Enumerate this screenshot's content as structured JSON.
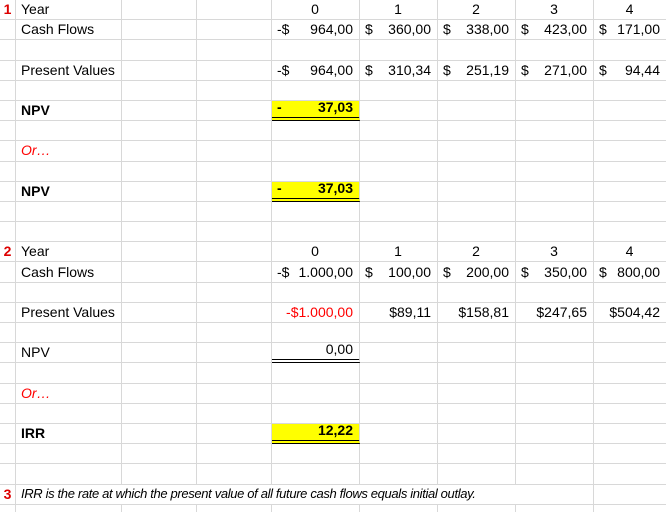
{
  "colors": {
    "highlight": "#ffff00",
    "red": "#ff0000",
    "index_red": "#dd0000",
    "grid": "#d8d8d8"
  },
  "sheet": {
    "cells": [
      {
        "r": 0,
        "c": 0,
        "t": "1",
        "cls": "idx"
      },
      {
        "r": 0,
        "c": 1,
        "t": "Year",
        "cls": "label"
      },
      {
        "r": 0,
        "c": 4,
        "t": "0",
        "cls": "num-c"
      },
      {
        "r": 0,
        "c": 5,
        "t": "1",
        "cls": "num-c"
      },
      {
        "r": 0,
        "c": 6,
        "t": "2",
        "cls": "num-c"
      },
      {
        "r": 0,
        "c": 7,
        "t": "3",
        "cls": "num-c"
      },
      {
        "r": 0,
        "c": 8,
        "t": "4",
        "cls": "num-c"
      },
      {
        "r": 1,
        "c": 1,
        "t": "Cash Flows",
        "cls": "label"
      },
      {
        "r": 1,
        "c": 4,
        "sym": "-$",
        "val": "964,00",
        "cls": "acc"
      },
      {
        "r": 1,
        "c": 5,
        "sym": "$",
        "val": "360,00",
        "cls": "acc"
      },
      {
        "r": 1,
        "c": 6,
        "sym": "$",
        "val": "338,00",
        "cls": "acc"
      },
      {
        "r": 1,
        "c": 7,
        "sym": "$",
        "val": "423,00",
        "cls": "acc"
      },
      {
        "r": 1,
        "c": 8,
        "sym": "$",
        "val": "171,00",
        "cls": "acc"
      },
      {
        "r": 3,
        "c": 1,
        "t": "Present Values",
        "cls": "label"
      },
      {
        "r": 3,
        "c": 4,
        "sym": "-$",
        "val": "964,00",
        "cls": "acc"
      },
      {
        "r": 3,
        "c": 5,
        "sym": "$",
        "val": "310,34",
        "cls": "acc"
      },
      {
        "r": 3,
        "c": 6,
        "sym": "$",
        "val": "251,19",
        "cls": "acc"
      },
      {
        "r": 3,
        "c": 7,
        "sym": "$",
        "val": "271,00",
        "cls": "acc"
      },
      {
        "r": 3,
        "c": 8,
        "sym": "$",
        "val": "94,44",
        "cls": "acc"
      },
      {
        "r": 5,
        "c": 1,
        "t": "NPV",
        "cls": "label b"
      },
      {
        "r": 5,
        "c": 4,
        "sym": "-",
        "val": "37,03",
        "cls": "acc b yellow dul"
      },
      {
        "r": 7,
        "c": 1,
        "t": "Or…",
        "cls": "or"
      },
      {
        "r": 9,
        "c": 1,
        "t": "NPV",
        "cls": "label b"
      },
      {
        "r": 9,
        "c": 4,
        "sym": "-",
        "val": "37,03",
        "cls": "acc b yellow dul"
      },
      {
        "r": 12,
        "c": 0,
        "t": "2",
        "cls": "idx"
      },
      {
        "r": 12,
        "c": 1,
        "t": "Year",
        "cls": "label"
      },
      {
        "r": 12,
        "c": 4,
        "t": "0",
        "cls": "num-c"
      },
      {
        "r": 12,
        "c": 5,
        "t": "1",
        "cls": "num-c"
      },
      {
        "r": 12,
        "c": 6,
        "t": "2",
        "cls": "num-c"
      },
      {
        "r": 12,
        "c": 7,
        "t": "3",
        "cls": "num-c"
      },
      {
        "r": 12,
        "c": 8,
        "t": "4",
        "cls": "num-c"
      },
      {
        "r": 13,
        "c": 1,
        "t": "Cash Flows",
        "cls": "label"
      },
      {
        "r": 13,
        "c": 4,
        "sym": "-$",
        "val": "1.000,00",
        "cls": "acc"
      },
      {
        "r": 13,
        "c": 5,
        "sym": "$",
        "val": "100,00",
        "cls": "acc"
      },
      {
        "r": 13,
        "c": 6,
        "sym": "$",
        "val": "200,00",
        "cls": "acc"
      },
      {
        "r": 13,
        "c": 7,
        "sym": "$",
        "val": "350,00",
        "cls": "acc"
      },
      {
        "r": 13,
        "c": 8,
        "sym": "$",
        "val": "800,00",
        "cls": "acc"
      },
      {
        "r": 15,
        "c": 1,
        "t": "Present Values",
        "cls": "label"
      },
      {
        "r": 15,
        "c": 4,
        "t": "-$1.000,00",
        "cls": "num-r red"
      },
      {
        "r": 15,
        "c": 5,
        "t": "$89,11",
        "cls": "num-r"
      },
      {
        "r": 15,
        "c": 6,
        "t": "$158,81",
        "cls": "num-r"
      },
      {
        "r": 15,
        "c": 7,
        "t": "$247,65",
        "cls": "num-r"
      },
      {
        "r": 15,
        "c": 8,
        "t": "$504,42",
        "cls": "num-r"
      },
      {
        "r": 17,
        "c": 1,
        "t": "NPV",
        "cls": "label"
      },
      {
        "r": 17,
        "c": 4,
        "t": "0,00",
        "cls": "num-r dul"
      },
      {
        "r": 19,
        "c": 1,
        "t": "Or…",
        "cls": "or"
      },
      {
        "r": 21,
        "c": 1,
        "t": "IRR",
        "cls": "label b"
      },
      {
        "r": 21,
        "c": 4,
        "t": "12,22",
        "cls": "num-r b yellow dul"
      },
      {
        "r": 24,
        "c": 0,
        "t": "3",
        "cls": "idx"
      },
      {
        "r": 24,
        "c": 1,
        "span": 7,
        "t": "IRR is the rate at which the present value of all future cash flows equals initial outlay.",
        "cls": "note"
      }
    ]
  }
}
